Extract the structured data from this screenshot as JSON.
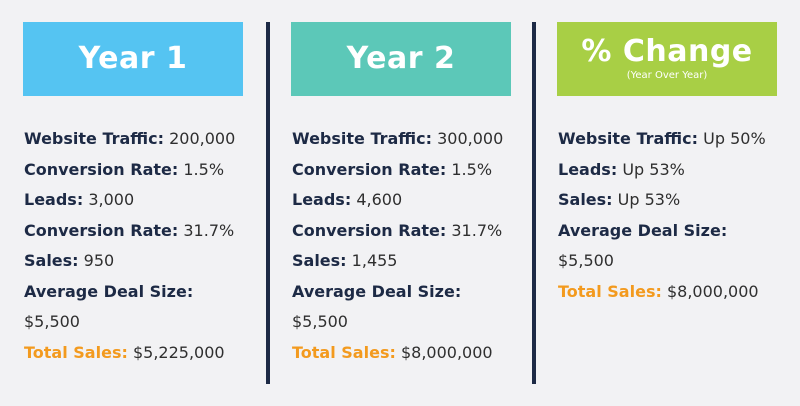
{
  "colors": {
    "year1_header": "#55c4f2",
    "year2_header": "#5cc8b8",
    "change_header": "#a8cf45",
    "label_dark": "#1d2a45",
    "total_label": "#f39a1e",
    "divider": "#1d2a45",
    "background": "#f2f2f4"
  },
  "columns": [
    {
      "title": "Year 1",
      "rows": [
        {
          "label": "Website Traffic:",
          "value": "200,000"
        },
        {
          "label": "Conversion Rate:",
          "value": "1.5%"
        },
        {
          "label": "Leads:",
          "value": "3,000"
        },
        {
          "label": "Conversion Rate:",
          "value": "31.7%"
        },
        {
          "label": "Sales:",
          "value": "950"
        },
        {
          "label": "Average Deal Size:",
          "value": ""
        },
        {
          "label": "",
          "value": "$5,500"
        },
        {
          "label": "Total Sales:",
          "value": "$5,225,000"
        }
      ]
    },
    {
      "title": "Year 2",
      "rows": [
        {
          "label": "Website Traffic:",
          "value": "300,000"
        },
        {
          "label": "Conversion Rate:",
          "value": "1.5%"
        },
        {
          "label": "Leads:",
          "value": "4,600"
        },
        {
          "label": "Conversion Rate:",
          "value": "31.7%"
        },
        {
          "label": "Sales:",
          "value": "1,455"
        },
        {
          "label": "Average Deal Size:",
          "value": ""
        },
        {
          "label": "",
          "value": "$5,500"
        },
        {
          "label": "Total Sales:",
          "value": "$8,000,000"
        }
      ]
    },
    {
      "title": "% Change",
      "subtitle": "(Year Over Year)",
      "rows": [
        {
          "label": "Website Traffic:",
          "value": "Up 50%"
        },
        {
          "label": "Leads:",
          "value": "Up 53%"
        },
        {
          "label": "Sales:",
          "value": "Up 53%"
        },
        {
          "label": "Average Deal Size:",
          "value": ""
        },
        {
          "label": "",
          "value": "$5,500"
        },
        {
          "label": "Total Sales:",
          "value": "$8,000,000"
        }
      ]
    }
  ]
}
